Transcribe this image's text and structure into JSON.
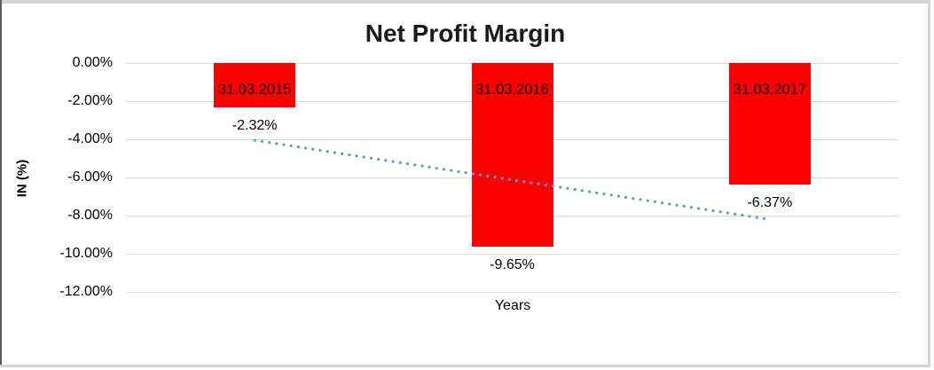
{
  "chart_data": {
    "type": "bar",
    "title": "Net Profit Margin",
    "xlabel": "Years",
    "ylabel": "IN (%)",
    "categories": [
      "31.03.2015",
      "31.03.2016",
      "31.03.2017"
    ],
    "series": [
      {
        "name": "Net Profit Margin",
        "values": [
          -2.32,
          -9.65,
          -6.37
        ]
      }
    ],
    "value_labels": [
      "-2.32%",
      "-9.65%",
      "-6.37%"
    ],
    "y_ticks": [
      {
        "label": "0.00%",
        "value": 0
      },
      {
        "label": "-2.00%",
        "value": -2
      },
      {
        "label": "-4.00%",
        "value": -4
      },
      {
        "label": "-6.00%",
        "value": -6
      },
      {
        "label": "-8.00%",
        "value": -8
      },
      {
        "label": "-10.00%",
        "value": -10
      },
      {
        "label": "-12.00%",
        "value": -12
      }
    ],
    "ylim": [
      -12,
      0
    ],
    "grid": true,
    "legend": false,
    "colors": {
      "bar": "#FF0000",
      "trendline": "#5B9BD5",
      "gridline": "#D9D9D9",
      "text": "#000000"
    },
    "trendline": {
      "style": "dotted",
      "start": {
        "category_x": 0,
        "value": -4.05
      },
      "end": {
        "category_x": 2,
        "value": -8.2
      }
    }
  }
}
